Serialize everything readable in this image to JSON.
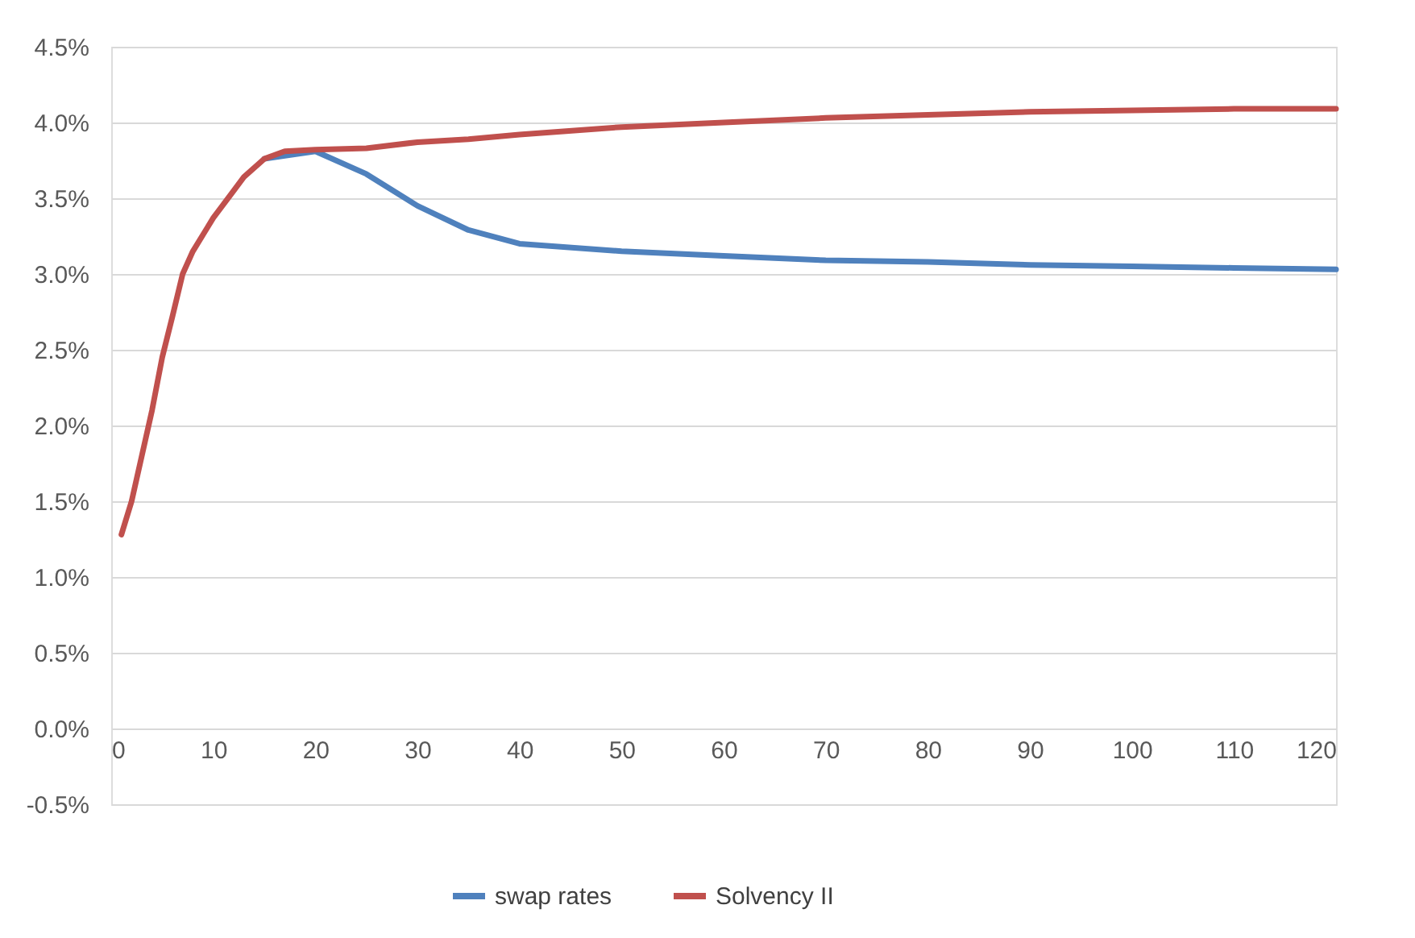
{
  "chart_data": {
    "type": "line",
    "x": [
      1,
      2,
      4,
      5,
      6,
      7,
      8,
      10,
      12,
      13,
      15,
      17,
      20,
      25,
      30,
      35,
      40,
      50,
      60,
      70,
      80,
      90,
      100,
      110,
      120
    ],
    "series": [
      {
        "name": "swap rates",
        "color": "#4f81bd",
        "values": [
          null,
          null,
          null,
          null,
          null,
          null,
          null,
          null,
          null,
          null,
          3.76,
          3.78,
          3.81,
          3.66,
          3.45,
          3.29,
          3.2,
          3.15,
          3.12,
          3.09,
          3.08,
          3.06,
          3.05,
          3.04,
          3.03
        ]
      },
      {
        "name": "Solvency II",
        "color": "#c0504d",
        "values": [
          1.28,
          1.5,
          2.1,
          2.45,
          2.72,
          3.0,
          3.15,
          3.37,
          3.55,
          3.64,
          3.76,
          3.81,
          3.82,
          3.83,
          3.87,
          3.89,
          3.92,
          3.97,
          4.0,
          4.03,
          4.05,
          4.07,
          4.08,
          4.09,
          4.09
        ]
      }
    ],
    "xlim": [
      0,
      120
    ],
    "xticks": [
      0,
      10,
      20,
      30,
      40,
      50,
      60,
      70,
      80,
      90,
      100,
      110,
      120
    ],
    "ylim": [
      -0.5,
      4.5
    ],
    "yticks": [
      {
        "value": -0.5,
        "label": "-0.5%"
      },
      {
        "value": 0,
        "label": "0.0%"
      },
      {
        "value": 0.5,
        "label": "0.5%"
      },
      {
        "value": 1,
        "label": "1.0%"
      },
      {
        "value": 1.5,
        "label": "1.5%"
      },
      {
        "value": 2,
        "label": "2.0%"
      },
      {
        "value": 2.5,
        "label": "2.5%"
      },
      {
        "value": 3,
        "label": "3.0%"
      },
      {
        "value": 3.5,
        "label": "3.5%"
      },
      {
        "value": 4,
        "label": "4.0%"
      },
      {
        "value": 4.5,
        "label": "4.5%"
      }
    ],
    "grid": "y",
    "legend": "bottom",
    "marker": "none",
    "line_style": "solid"
  }
}
